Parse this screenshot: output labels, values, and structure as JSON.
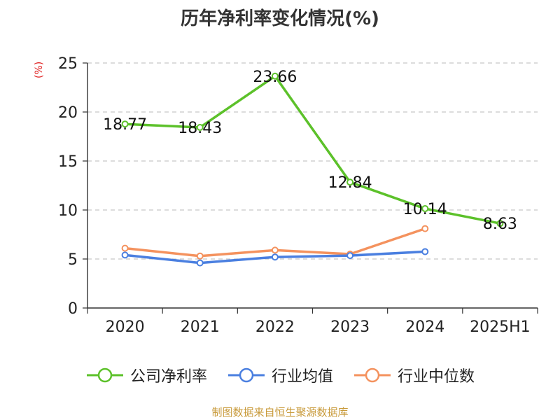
{
  "title": "历年净利率变化情况(%)",
  "unit_label": "(%)",
  "source": "制图数据来自恒生聚源数据库",
  "chart_data": {
    "type": "line",
    "categories": [
      "2020",
      "2021",
      "2022",
      "2023",
      "2024",
      "2025H1"
    ],
    "ylim": [
      0,
      25
    ],
    "yticks": [
      0,
      5,
      10,
      15,
      20,
      25
    ],
    "grid": true,
    "legend_position": "bottom",
    "series": [
      {
        "name": "公司净利率",
        "color": "#5cc12a",
        "values": [
          18.77,
          18.43,
          23.66,
          12.84,
          10.14,
          8.63
        ],
        "labels": [
          "18.77",
          "18.43",
          "23.66",
          "12.84",
          "10.14",
          "8.63"
        ]
      },
      {
        "name": "行业均值",
        "color": "#4a7fe0",
        "values": [
          5.4,
          4.6,
          5.2,
          5.35,
          5.75,
          null
        ]
      },
      {
        "name": "行业中位数",
        "color": "#f4925e",
        "values": [
          6.1,
          5.3,
          5.9,
          5.5,
          8.1,
          null
        ]
      }
    ]
  }
}
